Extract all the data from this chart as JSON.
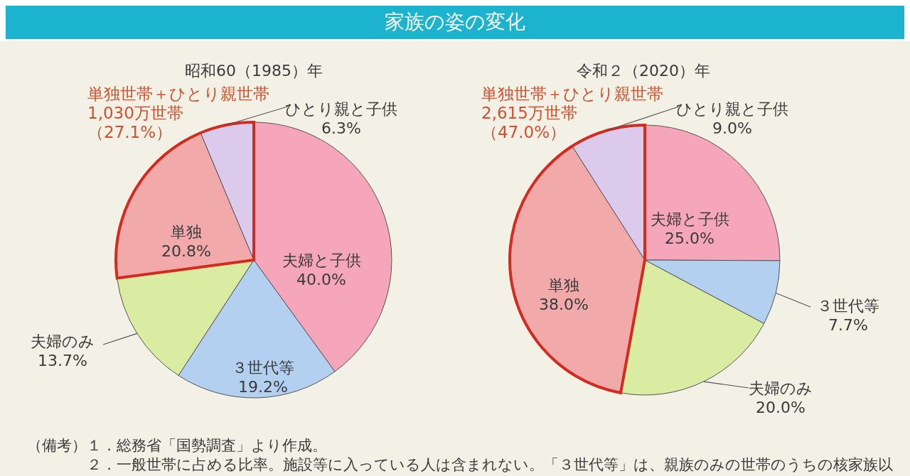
{
  "chart_data": [
    {
      "type": "pie",
      "title": "家族の姿の変化",
      "subtitle": "昭和60（1985）年",
      "categories": [
        "夫婦と子供",
        "３世代等",
        "夫婦のみ",
        "単独",
        "ひとり親と子供"
      ],
      "values": [
        40.0,
        19.2,
        13.7,
        20.8,
        6.3
      ],
      "value_labels": [
        "40.0%",
        "19.2%",
        "13.7%",
        "20.8%",
        "6.3%"
      ],
      "colors": [
        "#f6a6ba",
        "#b3d0f0",
        "#d9eca2",
        "#f1a9aa",
        "#dccaec"
      ],
      "annotations": [
        "単独世帯＋ひとり親世帯",
        "1,030万世帯",
        "（27.1%）",
        "（備考）１．総務省「国勢調査」より作成。",
        "２．一般世帯に占める比率。施設等に入っている人は含まれない。「３世代等」は、親族のみの世帯のうちの核家族以"
      ]
    },
    {
      "type": "pie",
      "subtitle": "令和２（2020）年",
      "categories": [
        "夫婦と子供",
        "３世代等",
        "夫婦のみ",
        "単独",
        "ひとり親と子供"
      ],
      "values": [
        25.0,
        7.7,
        20.0,
        38.0,
        9.0
      ],
      "value_labels": [
        "25.0%",
        "7.7%",
        "20.0%",
        "38.0%",
        "9.0%"
      ],
      "colors": [
        "#f6a6ba",
        "#b3d0f0",
        "#d9eca2",
        "#f1a9aa",
        "#dccaec"
      ],
      "annotations": [
        "単独世帯＋ひとり親世帯",
        "2,615万世帯",
        "（47.0%）"
      ]
    }
  ]
}
